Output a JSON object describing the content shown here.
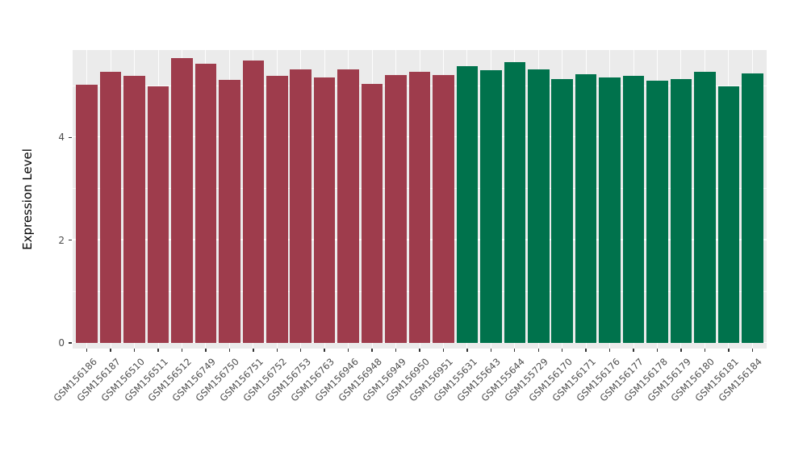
{
  "chart_data": {
    "type": "bar",
    "title": "",
    "xlabel": "",
    "ylabel": "Expression Level",
    "ylim": [
      0,
      5.7
    ],
    "yticks": [
      0,
      2,
      4
    ],
    "grid": {
      "major": [
        0,
        2,
        4
      ],
      "minor": [
        1,
        3,
        5
      ]
    },
    "legend": "none",
    "panel_background": "#EBEBEB",
    "grid_color": "#FFFFFF",
    "group_colors": {
      "red": "#9E3C4C",
      "green": "#00724C"
    },
    "bars": [
      {
        "label": "GSM156186",
        "value": 5.02,
        "group": "red"
      },
      {
        "label": "GSM156187",
        "value": 5.28,
        "group": "red"
      },
      {
        "label": "GSM156510",
        "value": 5.2,
        "group": "red"
      },
      {
        "label": "GSM156511",
        "value": 4.99,
        "group": "red"
      },
      {
        "label": "GSM156512",
        "value": 5.55,
        "group": "red"
      },
      {
        "label": "GSM156749",
        "value": 5.43,
        "group": "red"
      },
      {
        "label": "GSM156750",
        "value": 5.12,
        "group": "red"
      },
      {
        "label": "GSM156751",
        "value": 5.49,
        "group": "red"
      },
      {
        "label": "GSM156752",
        "value": 5.19,
        "group": "red"
      },
      {
        "label": "GSM156753",
        "value": 5.33,
        "group": "red"
      },
      {
        "label": "GSM156763",
        "value": 5.17,
        "group": "red"
      },
      {
        "label": "GSM156946",
        "value": 5.32,
        "group": "red"
      },
      {
        "label": "GSM156948",
        "value": 5.04,
        "group": "red"
      },
      {
        "label": "GSM156949",
        "value": 5.22,
        "group": "red"
      },
      {
        "label": "GSM156950",
        "value": 5.27,
        "group": "red"
      },
      {
        "label": "GSM156951",
        "value": 5.21,
        "group": "red"
      },
      {
        "label": "GSM155631",
        "value": 5.38,
        "group": "green"
      },
      {
        "label": "GSM155643",
        "value": 5.31,
        "group": "green"
      },
      {
        "label": "GSM155644",
        "value": 5.46,
        "group": "green"
      },
      {
        "label": "GSM155729",
        "value": 5.32,
        "group": "green"
      },
      {
        "label": "GSM156170",
        "value": 5.14,
        "group": "green"
      },
      {
        "label": "GSM156171",
        "value": 5.23,
        "group": "green"
      },
      {
        "label": "GSM156176",
        "value": 5.16,
        "group": "green"
      },
      {
        "label": "GSM156177",
        "value": 5.2,
        "group": "green"
      },
      {
        "label": "GSM156178",
        "value": 5.11,
        "group": "green"
      },
      {
        "label": "GSM156179",
        "value": 5.14,
        "group": "green"
      },
      {
        "label": "GSM156180",
        "value": 5.28,
        "group": "green"
      },
      {
        "label": "GSM156181",
        "value": 5.0,
        "group": "green"
      },
      {
        "label": "GSM156184",
        "value": 5.24,
        "group": "green"
      }
    ]
  }
}
